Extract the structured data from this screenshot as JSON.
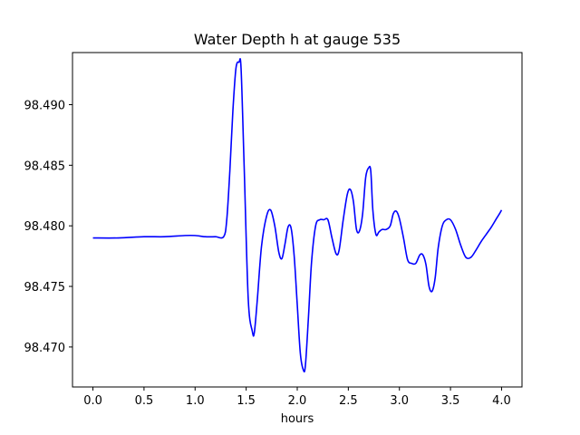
{
  "chart_data": {
    "type": "line",
    "title": "Water Depth h at gauge 535",
    "xlabel": "hours",
    "ylabel": "",
    "xlim": [
      -0.2,
      4.2
    ],
    "ylim": [
      98.4667,
      98.4943
    ],
    "xticks": [
      0.0,
      0.5,
      1.0,
      1.5,
      2.0,
      2.5,
      3.0,
      3.5,
      4.0
    ],
    "xtick_labels": [
      "0.0",
      "0.5",
      "1.0",
      "1.5",
      "2.0",
      "2.5",
      "3.0",
      "3.5",
      "4.0"
    ],
    "yticks": [
      98.47,
      98.475,
      98.48,
      98.485,
      98.49
    ],
    "ytick_labels": [
      "98.470",
      "98.475",
      "98.480",
      "98.485",
      "98.490"
    ],
    "grid": false,
    "legend": "none",
    "series": [
      {
        "color": "#0000ff",
        "x": [
          0.0,
          0.25,
          0.5,
          0.7,
          0.9,
          1.0,
          1.1,
          1.2,
          1.28,
          1.31,
          1.34,
          1.37,
          1.4,
          1.43,
          1.45,
          1.48,
          1.52,
          1.56,
          1.58,
          1.61,
          1.65,
          1.7,
          1.74,
          1.78,
          1.82,
          1.85,
          1.88,
          1.91,
          1.94,
          1.97,
          2.0,
          2.03,
          2.06,
          2.08,
          2.11,
          2.14,
          2.18,
          2.22,
          2.26,
          2.3,
          2.34,
          2.38,
          2.41,
          2.45,
          2.49,
          2.52,
          2.55,
          2.58,
          2.61,
          2.64,
          2.67,
          2.7,
          2.72,
          2.74,
          2.77,
          2.8,
          2.83,
          2.87,
          2.91,
          2.94,
          2.97,
          3.0,
          3.04,
          3.08,
          3.12,
          3.16,
          3.2,
          3.23,
          3.26,
          3.29,
          3.32,
          3.35,
          3.38,
          3.42,
          3.46,
          3.5,
          3.55,
          3.6,
          3.65,
          3.7,
          3.75,
          3.8,
          3.85,
          3.9,
          3.95,
          3.98,
          4.0
        ],
        "y": [
          98.479,
          98.479,
          98.4791,
          98.4791,
          98.4792,
          98.4792,
          98.4791,
          98.4791,
          98.4791,
          98.4805,
          98.4845,
          98.4895,
          98.493,
          98.4935,
          98.493,
          98.485,
          98.474,
          98.4713,
          98.4712,
          98.474,
          98.4783,
          98.4808,
          98.4813,
          98.48,
          98.4778,
          98.4773,
          98.4785,
          98.4799,
          98.4798,
          98.4775,
          98.4735,
          98.4695,
          98.4681,
          98.4685,
          98.4725,
          98.477,
          98.48,
          98.4805,
          98.4805,
          98.4805,
          98.479,
          98.4777,
          98.478,
          98.4805,
          98.4826,
          98.483,
          98.482,
          98.4797,
          98.4796,
          98.481,
          98.484,
          98.4848,
          98.4845,
          98.4813,
          98.4793,
          98.4795,
          98.4797,
          98.4797,
          98.48,
          98.481,
          98.4812,
          98.4806,
          98.479,
          98.4772,
          98.4769,
          98.4769,
          98.4776,
          98.4776,
          98.4768,
          98.475,
          98.4746,
          98.4757,
          98.4782,
          98.48,
          98.4805,
          98.4805,
          98.4797,
          98.4784,
          98.4774,
          98.4774,
          98.478,
          98.4787,
          98.4793,
          98.4799,
          98.4806,
          98.481,
          98.4813
        ]
      }
    ]
  }
}
